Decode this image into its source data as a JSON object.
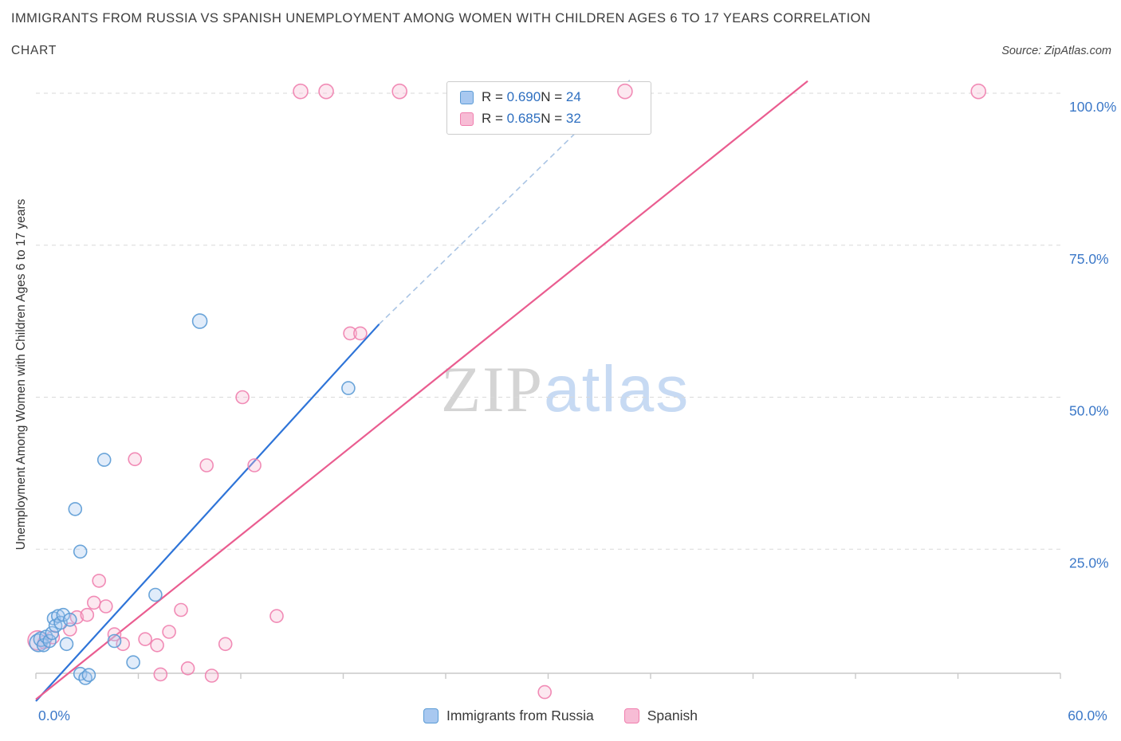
{
  "header": {
    "title": "IMMIGRANTS FROM RUSSIA VS SPANISH UNEMPLOYMENT AMONG WOMEN WITH CHILDREN AGES 6 TO 17 YEARS CORRELATION",
    "chart_label": "CHART",
    "source": "Source: ZipAtlas.com"
  },
  "watermark": {
    "zip": "ZIP",
    "atlas": "atlas"
  },
  "legend_box": {
    "rows": [
      {
        "r_label": "R =",
        "r_value": "0.690",
        "n_label": "N =",
        "n_value": "24"
      },
      {
        "r_label": "R =",
        "r_value": "0.685",
        "n_label": "N =",
        "n_value": "32"
      }
    ]
  },
  "bottom_legend": [
    {
      "label": "Immigrants from Russia"
    },
    {
      "label": "Spanish"
    }
  ],
  "chart_data": {
    "type": "scatter",
    "title": "IMMIGRANTS FROM RUSSIA VS SPANISH UNEMPLOYMENT AMONG WOMEN WITH CHILDREN AGES 6 TO 17 YEARS CORRELATION",
    "xlabel": "",
    "ylabel": "Unemployment Among Women with Children Ages 6 to 17 years",
    "xlim": [
      0,
      60
    ],
    "ylim": [
      0,
      105
    ],
    "x_tick_step": 6,
    "x_ticks": [
      {
        "value": 0,
        "label": "0.0%"
      },
      {
        "value": 60,
        "label": "60.0%"
      }
    ],
    "y_gridlines": [
      {
        "value": 25,
        "label": "25.0%"
      },
      {
        "value": 50,
        "label": "50.0%"
      },
      {
        "value": 75,
        "label": "75.0%"
      },
      {
        "value": 100,
        "label": "100.0%"
      }
    ],
    "grid_on": true,
    "legend_position": "top-center",
    "grid_color": "#d9d9d9",
    "axis_color": "#c9c9c9",
    "tick_label_color": "#3b78c8",
    "series": [
      {
        "name": "Immigrants from Russia",
        "R": 0.69,
        "N": 24,
        "stroke_color": "#5b9bd5",
        "fill_color": "#a8c8f0",
        "line_color": "#2e74d8",
        "trend_dash_color": "#a9c4e4",
        "trend": {
          "x1": 0,
          "y1": 0,
          "x2": 20.1,
          "y2": 62,
          "ext": [
            34.8,
            102.2
          ]
        },
        "points": [
          [
            0.15,
            9.6,
            11
          ],
          [
            0.3,
            10.2,
            9
          ],
          [
            0.45,
            9.2
          ],
          [
            0.6,
            10.6
          ],
          [
            0.8,
            9.9
          ],
          [
            0.95,
            11.2
          ],
          [
            1.05,
            13.6
          ],
          [
            1.15,
            12.4
          ],
          [
            1.3,
            14.0
          ],
          [
            1.45,
            12.9
          ],
          [
            1.6,
            14.2
          ],
          [
            1.8,
            9.4
          ],
          [
            2.0,
            13.4
          ],
          [
            2.3,
            31.6
          ],
          [
            2.6,
            24.6
          ],
          [
            2.6,
            4.5
          ],
          [
            2.9,
            3.8
          ],
          [
            3.1,
            4.3
          ],
          [
            4.0,
            39.7
          ],
          [
            4.6,
            9.9
          ],
          [
            5.7,
            6.4
          ],
          [
            7.0,
            17.5
          ],
          [
            9.6,
            62.5,
            9
          ],
          [
            18.3,
            51.5
          ]
        ]
      },
      {
        "name": "Spanish",
        "R": 0.685,
        "N": 32,
        "stroke_color": "#f07fae",
        "fill_color": "#f7bcd5",
        "line_color": "#ea5d90",
        "trend": {
          "x1": 0,
          "y1": 0.3,
          "x2": 45.2,
          "y2": 102
        },
        "points": [
          [
            0.1,
            10.0,
            12
          ],
          [
            0.5,
            9.7
          ],
          [
            1.0,
            10.5
          ],
          [
            2.0,
            11.8
          ],
          [
            2.4,
            13.8
          ],
          [
            3.0,
            14.2
          ],
          [
            3.4,
            16.2
          ],
          [
            3.7,
            19.8
          ],
          [
            4.1,
            15.6
          ],
          [
            4.6,
            11.0
          ],
          [
            5.1,
            9.4
          ],
          [
            5.8,
            39.8
          ],
          [
            6.4,
            10.2
          ],
          [
            7.1,
            9.2
          ],
          [
            7.3,
            4.4
          ],
          [
            7.8,
            11.4
          ],
          [
            8.5,
            15.0
          ],
          [
            8.9,
            5.4
          ],
          [
            10.0,
            38.8
          ],
          [
            10.3,
            4.2
          ],
          [
            11.1,
            9.4
          ],
          [
            12.1,
            50.0
          ],
          [
            12.8,
            38.8
          ],
          [
            14.1,
            14.0
          ],
          [
            15.5,
            100.3,
            9
          ],
          [
            17.0,
            100.3,
            9
          ],
          [
            18.4,
            60.5
          ],
          [
            19.0,
            60.5
          ],
          [
            21.3,
            100.3,
            9
          ],
          [
            29.8,
            1.5
          ],
          [
            34.5,
            100.3,
            9
          ],
          [
            55.2,
            100.3,
            9
          ]
        ]
      }
    ]
  }
}
